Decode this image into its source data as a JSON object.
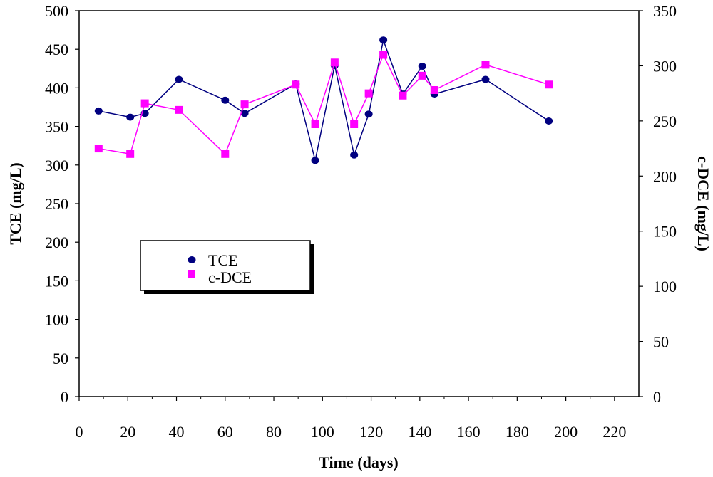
{
  "chart_data": {
    "type": "line",
    "title": "",
    "xlabel": "Time (days)",
    "ylabel_left": "TCE (mg/L)",
    "ylabel_right": "c-DCE (mg/L)",
    "xlim": [
      0,
      230
    ],
    "xticks": [
      0,
      20,
      40,
      60,
      80,
      100,
      120,
      140,
      160,
      180,
      200,
      220
    ],
    "ylim_left": [
      0,
      500
    ],
    "yticks_left": [
      0,
      50,
      100,
      150,
      200,
      250,
      300,
      350,
      400,
      450,
      500
    ],
    "ylim_right": [
      0,
      350
    ],
    "yticks_right": [
      0,
      50,
      100,
      150,
      200,
      250,
      300,
      350
    ],
    "grid": false,
    "legend_position": "middle-left",
    "series": [
      {
        "name": "TCE",
        "axis": "left",
        "color": "#000080",
        "marker": "circle",
        "x": [
          8,
          21,
          27,
          41,
          60,
          68,
          89,
          97,
          105,
          113,
          119,
          125,
          133,
          141,
          146,
          167,
          193
        ],
        "y": [
          370,
          362,
          367,
          411,
          384,
          367,
          405,
          306,
          429,
          313,
          366,
          462,
          392,
          428,
          392,
          411,
          357
        ]
      },
      {
        "name": "c-DCE",
        "axis": "right",
        "color": "#ff00ff",
        "marker": "square",
        "x": [
          8,
          21,
          27,
          41,
          60,
          68,
          89,
          97,
          105,
          113,
          119,
          125,
          133,
          141,
          146,
          167,
          193
        ],
        "y": [
          225,
          220,
          266,
          260,
          220,
          265,
          283,
          247,
          303,
          247,
          275,
          310,
          273,
          291,
          278,
          301,
          283
        ]
      }
    ]
  }
}
